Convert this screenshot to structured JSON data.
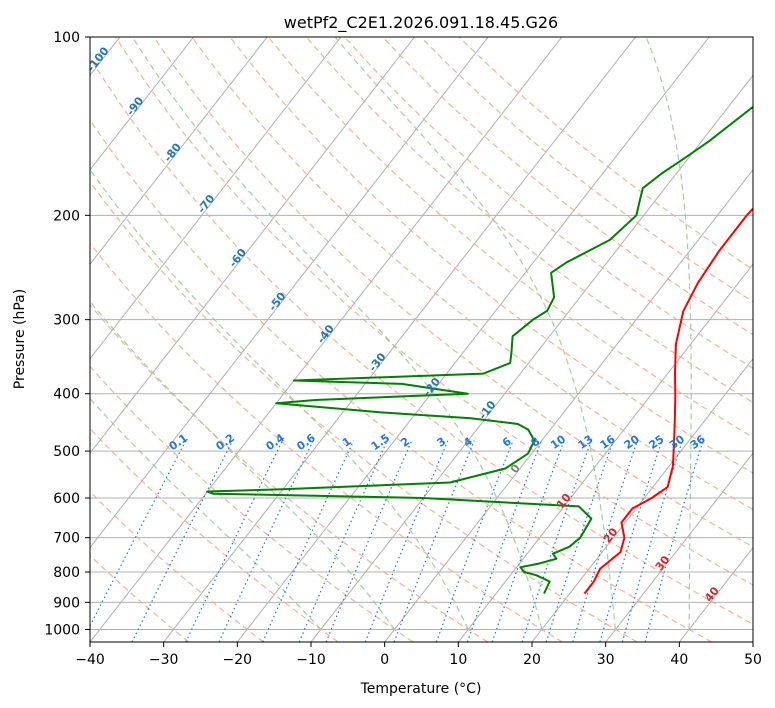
{
  "chart_data": {
    "type": "line",
    "title": "wetPf2_C2E1.2026.091.18.45.G26",
    "xlabel": "Temperature (°C)",
    "ylabel": "Pressure (hPa)",
    "xlim": [
      -40,
      50
    ],
    "ylim": [
      1050,
      100
    ],
    "y_scale": "log",
    "grid": true,
    "x_ticks": [
      -40,
      -30,
      -20,
      -10,
      0,
      10,
      20,
      30,
      40,
      50
    ],
    "y_ticks": [
      100,
      200,
      300,
      400,
      500,
      600,
      700,
      800,
      900,
      1000
    ],
    "series": [
      {
        "color": "#ff0000",
        "points": [
          [
            22.0,
            870
          ],
          [
            22.0,
            830
          ],
          [
            21.5,
            790
          ],
          [
            22.5,
            740
          ],
          [
            21.5,
            700
          ],
          [
            19.5,
            660
          ],
          [
            19.5,
            625
          ],
          [
            21.0,
            600
          ],
          [
            22.0,
            575
          ],
          [
            20.5,
            530
          ],
          [
            18.5,
            490
          ],
          [
            16.0,
            445
          ],
          [
            13.5,
            405
          ],
          [
            11.0,
            370
          ],
          [
            8.0,
            330
          ],
          [
            5.5,
            290
          ],
          [
            4.5,
            260
          ],
          [
            4.0,
            230
          ],
          [
            4.0,
            200
          ],
          [
            4.5,
            180
          ],
          [
            4.0,
            160
          ],
          [
            4.0,
            140
          ],
          [
            4.0,
            125
          ],
          [
            5.0,
            115
          ],
          [
            7.0,
            108
          ],
          [
            9.0,
            100
          ]
        ]
      },
      {
        "color": "#008000",
        "points": [
          [
            16.5,
            870
          ],
          [
            16.0,
            830
          ],
          [
            13.5,
            810
          ],
          [
            11.5,
            800
          ],
          [
            10.5,
            785
          ],
          [
            12.5,
            775
          ],
          [
            14.5,
            760
          ],
          [
            13.5,
            745
          ],
          [
            15.0,
            725
          ],
          [
            15.5,
            700
          ],
          [
            15.0,
            650
          ],
          [
            12.0,
            620
          ],
          [
            -10.0,
            600
          ],
          [
            -39.0,
            590
          ],
          [
            -40.0,
            585
          ],
          [
            -30.0,
            580
          ],
          [
            -8.0,
            565
          ],
          [
            -2.0,
            535
          ],
          [
            -0.5,
            505
          ],
          [
            -1.0,
            480
          ],
          [
            -3.0,
            460
          ],
          [
            -5.0,
            450
          ],
          [
            -12.0,
            440
          ],
          [
            -25.0,
            430
          ],
          [
            -40.0,
            415
          ],
          [
            -35.0,
            410
          ],
          [
            -15.0,
            400
          ],
          [
            -25.0,
            385
          ],
          [
            -40.0,
            380
          ],
          [
            -15.0,
            370
          ],
          [
            -12.5,
            355
          ],
          [
            -13.5,
            340
          ],
          [
            -15.0,
            320
          ],
          [
            -14.0,
            300
          ],
          [
            -13.0,
            290
          ],
          [
            -13.5,
            275
          ],
          [
            -16.5,
            250
          ],
          [
            -15.5,
            240
          ],
          [
            -12.0,
            220
          ],
          [
            -11.0,
            200
          ],
          [
            -12.0,
            190
          ],
          [
            -13.0,
            180
          ],
          [
            -12.0,
            170
          ],
          [
            -10.5,
            160
          ],
          [
            -9.0,
            150
          ],
          [
            -6.5,
            130
          ],
          [
            -4.5,
            115
          ],
          [
            -3.0,
            100
          ]
        ]
      }
    ],
    "dry_adiabats_theta_C": [
      -30,
      -20,
      -10,
      0,
      10,
      20,
      30,
      40,
      50,
      60,
      70,
      80,
      90,
      100,
      110,
      120,
      130,
      140,
      150
    ],
    "moist_adiabats_T_at_1000_C": [
      -10,
      0,
      10,
      20,
      30,
      40
    ],
    "mixing_ratio_lines": [
      "0.1",
      "0.2",
      "0.4",
      "0.6",
      "1",
      "1.5",
      "2",
      "3",
      "4",
      "6",
      "8",
      "10",
      "13",
      "16",
      "20",
      "25",
      "30",
      "36"
    ],
    "isotherm_labels": [
      "-100",
      "-90",
      "-80",
      "-70",
      "-60",
      "-50",
      "-40",
      "-30",
      "-20",
      "-10",
      "0",
      "10",
      "20",
      "30",
      "40"
    ],
    "colors": {
      "temperature": "#ff0000",
      "dewpoint": "#008000",
      "grid": "#b0b0b0",
      "dry_adiabat": "#f4a582",
      "moist_adiabat": "#8fc98f",
      "mixing_ratio": "#1f77e4",
      "isotherm_label_cold": "#1f77b4",
      "isotherm_label_zero": "#808080",
      "isotherm_label_warm": "#d62728"
    }
  }
}
